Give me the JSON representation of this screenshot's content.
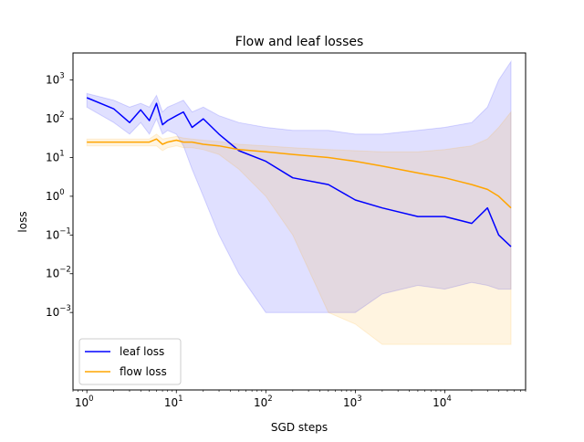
{
  "chart_data": {
    "type": "line",
    "title": "Flow and leaf losses",
    "xlabel": "SGD steps",
    "ylabel": "loss",
    "xscale": "log",
    "yscale": "log",
    "xlim": [
      0.7,
      80000
    ],
    "ylim": [
      1e-05,
      5000
    ],
    "xticks": [
      {
        "value": 1,
        "base": "10",
        "exp": "0"
      },
      {
        "value": 10,
        "base": "10",
        "exp": "1"
      },
      {
        "value": 100,
        "base": "10",
        "exp": "2"
      },
      {
        "value": 1000,
        "base": "10",
        "exp": "3"
      },
      {
        "value": 10000,
        "base": "10",
        "exp": "4"
      }
    ],
    "yticks": [
      {
        "value": 0.001,
        "base": "10",
        "exp": "−3"
      },
      {
        "value": 0.01,
        "base": "10",
        "exp": "−2"
      },
      {
        "value": 0.1,
        "base": "10",
        "exp": "−1"
      },
      {
        "value": 1,
        "base": "10",
        "exp": "0"
      },
      {
        "value": 10,
        "base": "10",
        "exp": "1"
      },
      {
        "value": 100,
        "base": "10",
        "exp": "2"
      },
      {
        "value": 1000,
        "base": "10",
        "exp": "3"
      }
    ],
    "legend_position": "lower-left",
    "grid": false,
    "series": [
      {
        "name": "leaf loss",
        "color": "#0000ff",
        "band_color": "#0000ff",
        "x": [
          1,
          2,
          3,
          4,
          5,
          6,
          7,
          8,
          10,
          12,
          15,
          20,
          30,
          50,
          100,
          200,
          500,
          1000,
          2000,
          5000,
          10000,
          20000,
          30000,
          40000,
          55000
        ],
        "y": [
          350,
          180,
          80,
          170,
          90,
          250,
          70,
          90,
          120,
          150,
          60,
          100,
          40,
          15,
          8,
          3,
          2,
          0.8,
          0.5,
          0.3,
          0.3,
          0.2,
          0.5,
          0.1,
          0.05
        ],
        "y_upper": [
          450,
          300,
          200,
          250,
          200,
          400,
          150,
          200,
          250,
          300,
          150,
          200,
          120,
          80,
          60,
          50,
          50,
          40,
          40,
          50,
          60,
          80,
          200,
          1000,
          3000
        ],
        "y_lower": [
          200,
          80,
          40,
          80,
          40,
          100,
          40,
          50,
          40,
          20,
          5,
          1,
          0.1,
          0.01,
          0.001,
          0.001,
          0.001,
          0.001,
          0.003,
          0.005,
          0.004,
          0.006,
          0.005,
          0.004,
          0.004
        ]
      },
      {
        "name": "flow loss",
        "color": "#ffa500",
        "band_color": "#ffa500",
        "x": [
          1,
          2,
          3,
          4,
          5,
          6,
          7,
          8,
          10,
          12,
          15,
          20,
          30,
          50,
          100,
          200,
          500,
          1000,
          2000,
          5000,
          10000,
          20000,
          30000,
          40000,
          55000
        ],
        "y": [
          25,
          25,
          25,
          25,
          25,
          30,
          22,
          25,
          28,
          25,
          25,
          22,
          20,
          16,
          14,
          12,
          10,
          8,
          6,
          4,
          3,
          2,
          1.5,
          1,
          0.5
        ],
        "y_upper": [
          30,
          30,
          30,
          30,
          30,
          40,
          30,
          32,
          35,
          32,
          30,
          28,
          26,
          22,
          20,
          18,
          16,
          15,
          14,
          14,
          16,
          20,
          30,
          60,
          150
        ],
        "y_lower": [
          20,
          20,
          20,
          20,
          20,
          20,
          15,
          18,
          20,
          18,
          18,
          16,
          12,
          5,
          1,
          0.1,
          0.001,
          0.0005,
          0.00015,
          0.00015,
          0.00015,
          0.00015,
          0.00015,
          0.00015,
          0.00015
        ]
      }
    ]
  }
}
